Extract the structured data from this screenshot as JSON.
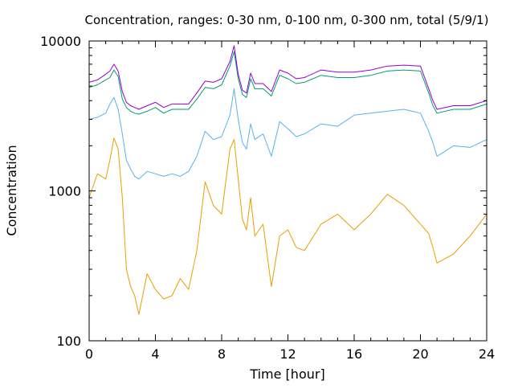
{
  "chart_data": {
    "type": "line",
    "title": "Concentration, ranges: 0-30 nm, 0-100 nm, 0-300 nm, total (5/9/1)",
    "xlabel": "Time [hour]",
    "ylabel": "Concentration",
    "xlim": [
      0,
      24
    ],
    "ylim": [
      100,
      10000
    ],
    "yscale": "log",
    "grid": false,
    "legend": "none",
    "xticks": [
      0,
      4,
      8,
      12,
      16,
      20,
      24
    ],
    "xtick_labels": [
      "0",
      "4",
      "8",
      "12",
      "16",
      "20",
      "24"
    ],
    "yticks": [
      100,
      1000,
      10000
    ],
    "ytick_labels": [
      "100",
      "1000",
      "10000"
    ],
    "x": [
      0,
      0.5,
      1,
      1.25,
      1.5,
      1.75,
      2,
      2.25,
      2.5,
      2.75,
      3,
      3.5,
      4,
      4.5,
      5,
      5.5,
      6,
      6.5,
      7,
      7.5,
      8,
      8.5,
      8.75,
      9,
      9.25,
      9.5,
      9.75,
      10,
      10.5,
      11,
      11.5,
      12,
      12.5,
      13,
      14,
      15,
      16,
      17,
      18,
      19,
      20,
      20.5,
      20.75,
      21,
      22,
      23,
      24
    ],
    "series": [
      {
        "color": "#e6a000",
        "values": [
          900,
          1300,
          1200,
          1600,
          2250,
          1900,
          900,
          300,
          230,
          200,
          150,
          280,
          220,
          190,
          200,
          260,
          220,
          400,
          1150,
          800,
          700,
          1900,
          2200,
          1200,
          650,
          550,
          900,
          500,
          600,
          230,
          500,
          550,
          420,
          400,
          600,
          700,
          550,
          700,
          950,
          800,
          600,
          520,
          420,
          330,
          380,
          500,
          700
        ]
      },
      {
        "color": "#56b4e9",
        "values": [
          3000,
          3100,
          3300,
          3800,
          4200,
          3500,
          2400,
          1600,
          1400,
          1250,
          1200,
          1350,
          1300,
          1250,
          1300,
          1250,
          1350,
          1700,
          2500,
          2200,
          2300,
          3200,
          4800,
          3000,
          2100,
          1900,
          2800,
          2200,
          2400,
          1700,
          2900,
          2600,
          2300,
          2400,
          2800,
          2700,
          3200,
          3300,
          3400,
          3500,
          3300,
          2500,
          2100,
          1700,
          2000,
          1950,
          2200
        ]
      },
      {
        "color": "#009e73",
        "values": [
          4900,
          5100,
          5500,
          5700,
          6400,
          5800,
          4100,
          3600,
          3400,
          3300,
          3250,
          3400,
          3600,
          3300,
          3500,
          3500,
          3500,
          4100,
          4900,
          4800,
          5100,
          6800,
          8500,
          5600,
          4400,
          4200,
          5600,
          4800,
          4800,
          4300,
          5900,
          5600,
          5200,
          5300,
          5900,
          5700,
          5700,
          5900,
          6300,
          6400,
          6300,
          4500,
          3700,
          3300,
          3500,
          3500,
          3800
        ]
      },
      {
        "color": "#9400d3",
        "values": [
          5300,
          5500,
          6000,
          6300,
          7000,
          6300,
          4600,
          3900,
          3700,
          3600,
          3500,
          3700,
          3900,
          3600,
          3800,
          3800,
          3800,
          4500,
          5400,
          5300,
          5600,
          7300,
          9300,
          6000,
          4700,
          4500,
          6100,
          5200,
          5200,
          4600,
          6400,
          6100,
          5600,
          5700,
          6400,
          6200,
          6200,
          6400,
          6800,
          6900,
          6800,
          4800,
          4000,
          3500,
          3700,
          3700,
          4000
        ]
      }
    ]
  }
}
